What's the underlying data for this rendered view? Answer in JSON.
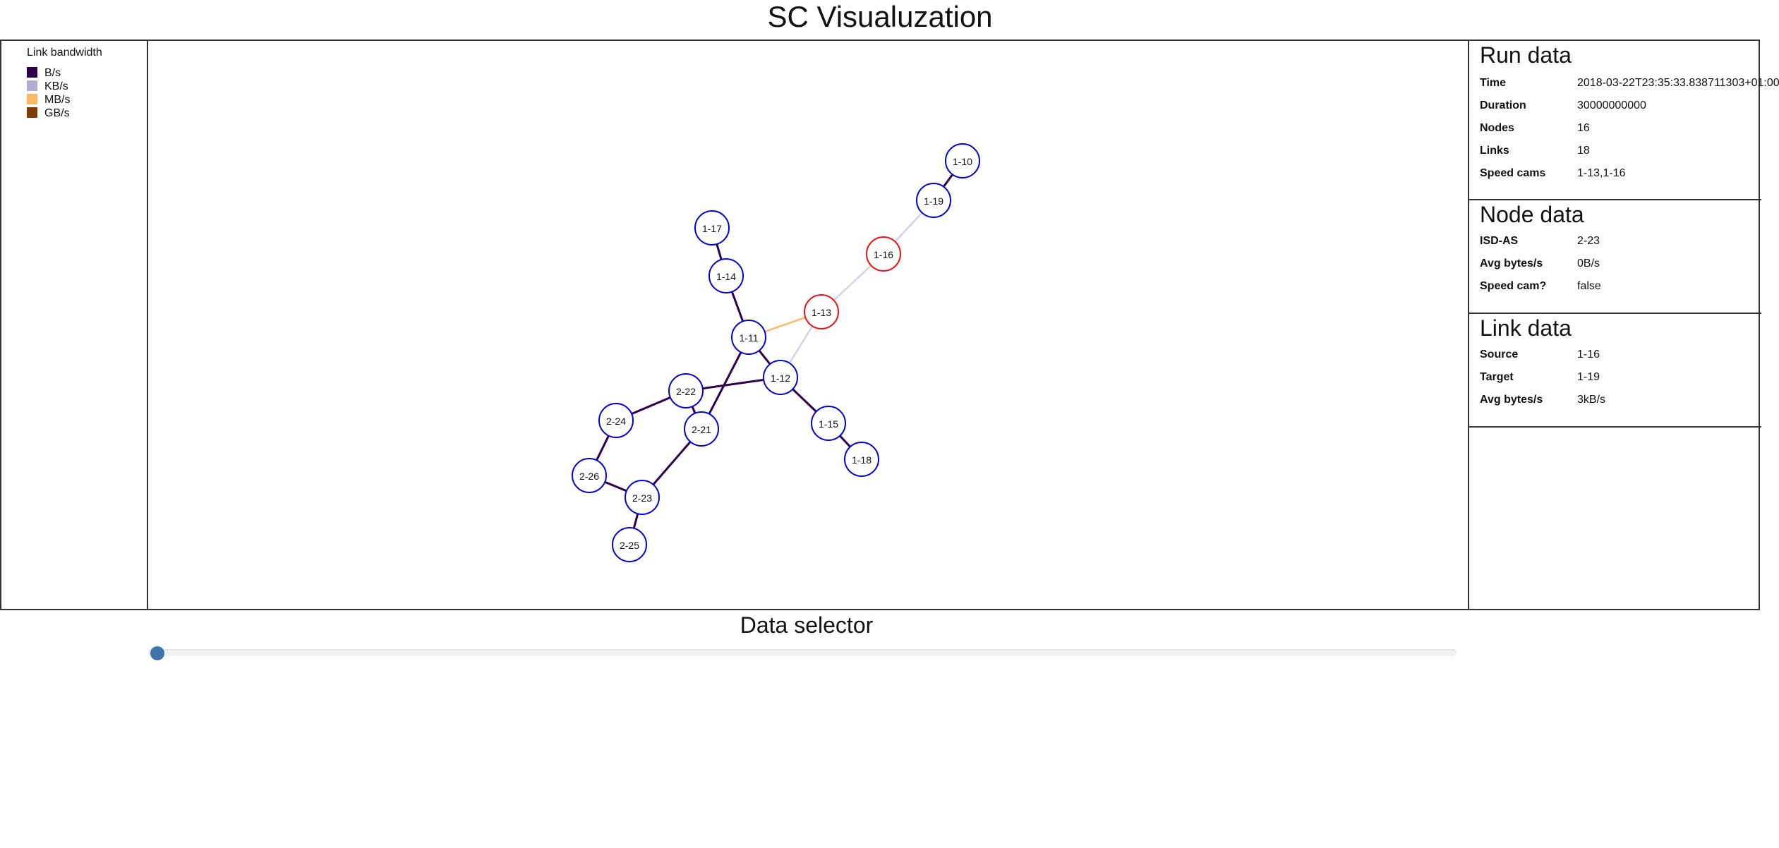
{
  "app": {
    "title": "SC Visualuzation"
  },
  "legend": {
    "title": "Link bandwidth",
    "items": [
      {
        "label": "B/s",
        "color": "#2d004b"
      },
      {
        "label": "KB/s",
        "color": "#b2abd2"
      },
      {
        "label": "MB/s",
        "color": "#fdb863"
      },
      {
        "label": "GB/s",
        "color": "#7f3b08"
      }
    ]
  },
  "graph": {
    "nodes": [
      {
        "id": "1-10",
        "speed_cam": false
      },
      {
        "id": "1-19",
        "speed_cam": false
      },
      {
        "id": "1-16",
        "speed_cam": true
      },
      {
        "id": "1-13",
        "speed_cam": true
      },
      {
        "id": "1-17",
        "speed_cam": false
      },
      {
        "id": "1-14",
        "speed_cam": false
      },
      {
        "id": "1-11",
        "speed_cam": false
      },
      {
        "id": "1-12",
        "speed_cam": false
      },
      {
        "id": "2-22",
        "speed_cam": false
      },
      {
        "id": "2-24",
        "speed_cam": false
      },
      {
        "id": "2-21",
        "speed_cam": false
      },
      {
        "id": "1-15",
        "speed_cam": false
      },
      {
        "id": "1-18",
        "speed_cam": false
      },
      {
        "id": "2-26",
        "speed_cam": false
      },
      {
        "id": "2-23",
        "speed_cam": false
      },
      {
        "id": "2-25",
        "speed_cam": false
      }
    ],
    "links": [
      {
        "source": "1-10",
        "target": "1-19",
        "bandwidth": "B/s"
      },
      {
        "source": "1-19",
        "target": "1-16",
        "bandwidth": "KB/s"
      },
      {
        "source": "1-16",
        "target": "1-13",
        "bandwidth": "KB/s"
      },
      {
        "source": "1-13",
        "target": "1-11",
        "bandwidth": "MB/s"
      },
      {
        "source": "1-13",
        "target": "1-12",
        "bandwidth": "KB/s"
      },
      {
        "source": "1-17",
        "target": "1-14",
        "bandwidth": "B/s"
      },
      {
        "source": "1-14",
        "target": "1-11",
        "bandwidth": "B/s"
      },
      {
        "source": "1-11",
        "target": "1-12",
        "bandwidth": "B/s"
      },
      {
        "source": "1-11",
        "target": "2-21",
        "bandwidth": "B/s"
      },
      {
        "source": "1-12",
        "target": "2-22",
        "bandwidth": "B/s"
      },
      {
        "source": "1-12",
        "target": "1-15",
        "bandwidth": "B/s"
      },
      {
        "source": "1-15",
        "target": "1-18",
        "bandwidth": "B/s"
      },
      {
        "source": "2-22",
        "target": "2-24",
        "bandwidth": "B/s"
      },
      {
        "source": "2-22",
        "target": "2-21",
        "bandwidth": "B/s"
      },
      {
        "source": "2-21",
        "target": "2-23",
        "bandwidth": "B/s"
      },
      {
        "source": "2-24",
        "target": "2-26",
        "bandwidth": "B/s"
      },
      {
        "source": "2-26",
        "target": "2-23",
        "bandwidth": "B/s"
      },
      {
        "source": "2-23",
        "target": "2-25",
        "bandwidth": "B/s"
      }
    ],
    "colors": {
      "node_stroke": "#0000dd",
      "speed_cam_stroke": "#ee1111"
    }
  },
  "run_data": {
    "heading": "Run data",
    "rows": [
      {
        "label": "Time",
        "value": "2018-03-22T23:35:33.838711303+01:00"
      },
      {
        "label": "Duration",
        "value": "30000000000"
      },
      {
        "label": "Nodes",
        "value": "16"
      },
      {
        "label": "Links",
        "value": "18"
      },
      {
        "label": "Speed cams",
        "value": "1-13,1-16"
      }
    ]
  },
  "node_data": {
    "heading": "Node data",
    "rows": [
      {
        "label": "ISD-AS",
        "value": "2-23"
      },
      {
        "label": "Avg bytes/s",
        "value": "0B/s"
      },
      {
        "label": "Speed cam?",
        "value": "false"
      }
    ]
  },
  "link_data": {
    "heading": "Link data",
    "rows": [
      {
        "label": "Source",
        "value": "1-16"
      },
      {
        "label": "Target",
        "value": "1-19"
      },
      {
        "label": "Avg bytes/s",
        "value": "3kB/s"
      }
    ]
  },
  "data_selector": {
    "title": "Data selector",
    "position": 0
  }
}
